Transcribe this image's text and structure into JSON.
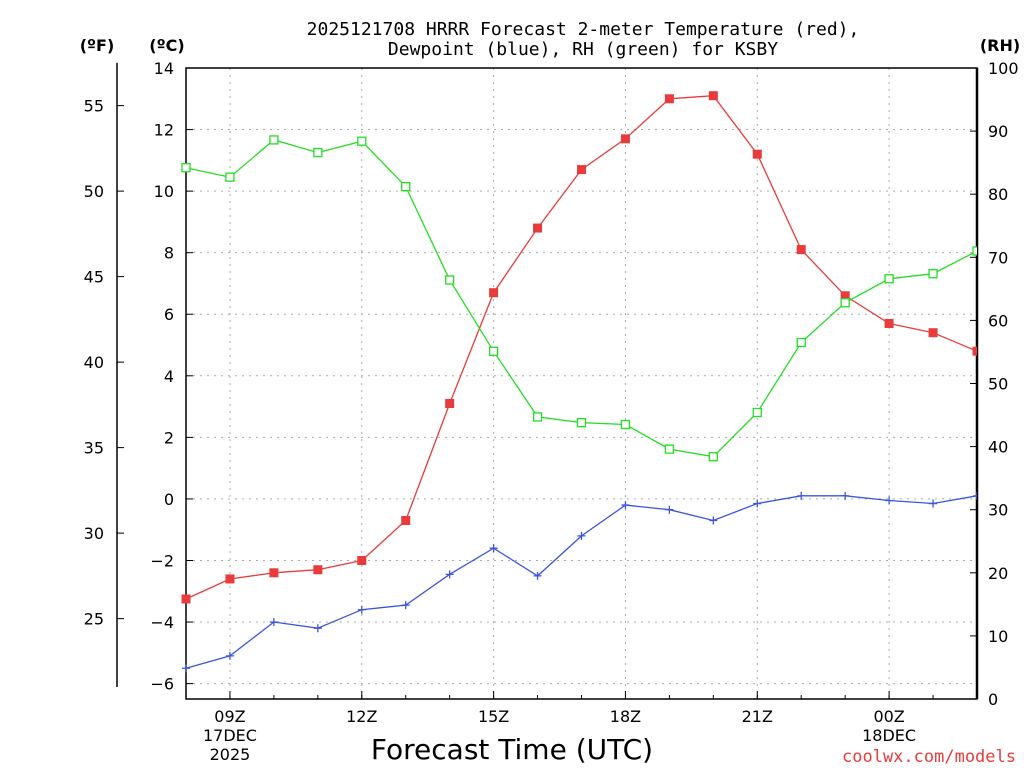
{
  "chart_data": {
    "type": "line",
    "title_line1": "2025121708 HRRR Forecast 2-meter Temperature (red),",
    "title_line2": "Dewpoint (blue), RH (green) for KSBY",
    "xlabel": "Forecast Time (UTC)",
    "watermark": "coolwx.com/models",
    "units": {
      "fahrenheit": "(ºF)",
      "celsius": "(ºC)",
      "rh": "(RH)"
    },
    "hours": [
      8,
      9,
      10,
      11,
      12,
      13,
      14,
      15,
      16,
      17,
      18,
      19,
      20,
      21,
      22,
      23,
      24,
      25,
      26
    ],
    "x_range": [
      8,
      26
    ],
    "x_ticks": [
      {
        "hour": 9,
        "label": "09Z",
        "date": "17DEC",
        "year": "2025"
      },
      {
        "hour": 12,
        "label": "12Z",
        "date": "",
        "year": ""
      },
      {
        "hour": 15,
        "label": "15Z",
        "date": "",
        "year": ""
      },
      {
        "hour": 18,
        "label": "18Z",
        "date": "",
        "year": ""
      },
      {
        "hour": 21,
        "label": "21Z",
        "date": "",
        "year": ""
      },
      {
        "hour": 24,
        "label": "00Z",
        "date": "18DEC",
        "year": ""
      }
    ],
    "y_celsius_range": [
      -6.5,
      14
    ],
    "y_celsius_ticks": [
      -6,
      -4,
      -2,
      0,
      2,
      4,
      6,
      8,
      10,
      12,
      14
    ],
    "y_celsius_tick_labels": [
      "−6",
      "−4",
      "−2",
      "0",
      "2",
      "4",
      "6",
      "8",
      "10",
      "12",
      "14"
    ],
    "y_fahrenheit_ticks": [
      25,
      30,
      35,
      40,
      45,
      50,
      55
    ],
    "y_fahrenheit_tick_labels": [
      "25",
      "30",
      "35",
      "40",
      "45",
      "50",
      "55"
    ],
    "y_rh_range": [
      0,
      100
    ],
    "y_rh_ticks": [
      0,
      10,
      20,
      30,
      40,
      50,
      60,
      70,
      80,
      90,
      100
    ],
    "y_rh_tick_labels": [
      "0",
      "10",
      "20",
      "30",
      "40",
      "50",
      "60",
      "70",
      "80",
      "90",
      "100"
    ],
    "series": [
      {
        "name": "Temperature",
        "axis": "celsius",
        "color": "#e83b3b",
        "marker": "filled-square",
        "values": [
          -3.25,
          -2.6,
          -2.4,
          -2.3,
          -2.0,
          -0.7,
          3.1,
          6.7,
          8.8,
          10.7,
          11.7,
          13.0,
          13.1,
          11.2,
          8.1,
          6.6,
          5.7,
          5.4,
          4.8
        ]
      },
      {
        "name": "Dewpoint",
        "axis": "celsius",
        "color": "#3a55e0",
        "marker": "plus",
        "values": [
          -5.5,
          -5.1,
          -4.0,
          -4.2,
          -3.6,
          -3.45,
          -2.45,
          -1.6,
          -2.5,
          -1.2,
          -0.2,
          -0.35,
          -0.7,
          -0.15,
          0.1,
          0.1,
          -0.05,
          -0.15,
          0.1
        ]
      },
      {
        "name": "RH",
        "axis": "rh",
        "color": "#22dd22",
        "marker": "open-square",
        "values": [
          84.2,
          82.7,
          88.6,
          86.6,
          88.4,
          81.2,
          66.4,
          55.1,
          44.7,
          43.8,
          43.5,
          39.6,
          38.4,
          45.4,
          56.5,
          62.8,
          66.6,
          67.4,
          71.0
        ]
      }
    ]
  }
}
